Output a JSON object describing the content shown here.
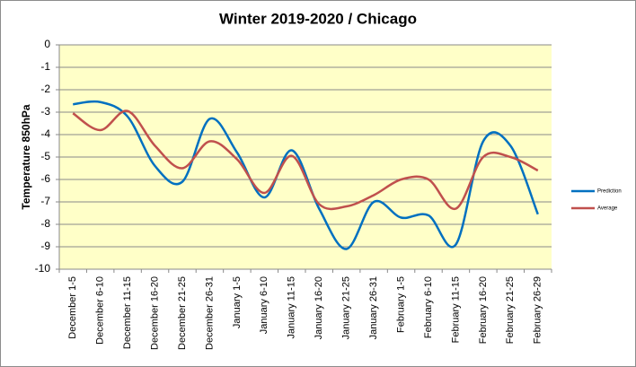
{
  "chart_data": {
    "type": "line",
    "title": "Winter 2019-2020 / Chicago",
    "y_label": "Temperature 850hPa",
    "categories": [
      "December 1-5",
      "December 6-10",
      "December 11-15",
      "December 16-20",
      "December 21-25",
      "December 26-31",
      "January 1-5",
      "January 6-10",
      "January 11-15",
      "January 16-20",
      "January 21-25",
      "January 26-31",
      "February 1-5",
      "February 6-10",
      "February 11-15",
      "February 16-20",
      "February 21-25",
      "February 26-29"
    ],
    "series": [
      {
        "name": "Prediction",
        "color": "#0070c0",
        "values": [
          -2.65,
          -2.55,
          -3.2,
          -5.4,
          -6.1,
          -3.3,
          -4.8,
          -6.8,
          -4.7,
          -7.3,
          -9.1,
          -7.0,
          -7.7,
          -7.6,
          -8.9,
          -4.3,
          -4.5,
          -7.55
        ]
      },
      {
        "name": "Average",
        "color": "#c0504d",
        "values": [
          -3.05,
          -3.8,
          -2.95,
          -4.5,
          -5.5,
          -4.3,
          -5.1,
          -6.6,
          -4.95,
          -7.1,
          -7.2,
          -6.7,
          -6.0,
          -6.0,
          -7.3,
          -5.0,
          -5.0,
          -5.6
        ]
      }
    ],
    "ylim": [
      -10,
      0
    ],
    "yticks": [
      0,
      -1,
      -2,
      -3,
      -4,
      -5,
      -6,
      -7,
      -8,
      -9,
      -10
    ],
    "grid": true,
    "smooth": true,
    "legend": "right"
  }
}
